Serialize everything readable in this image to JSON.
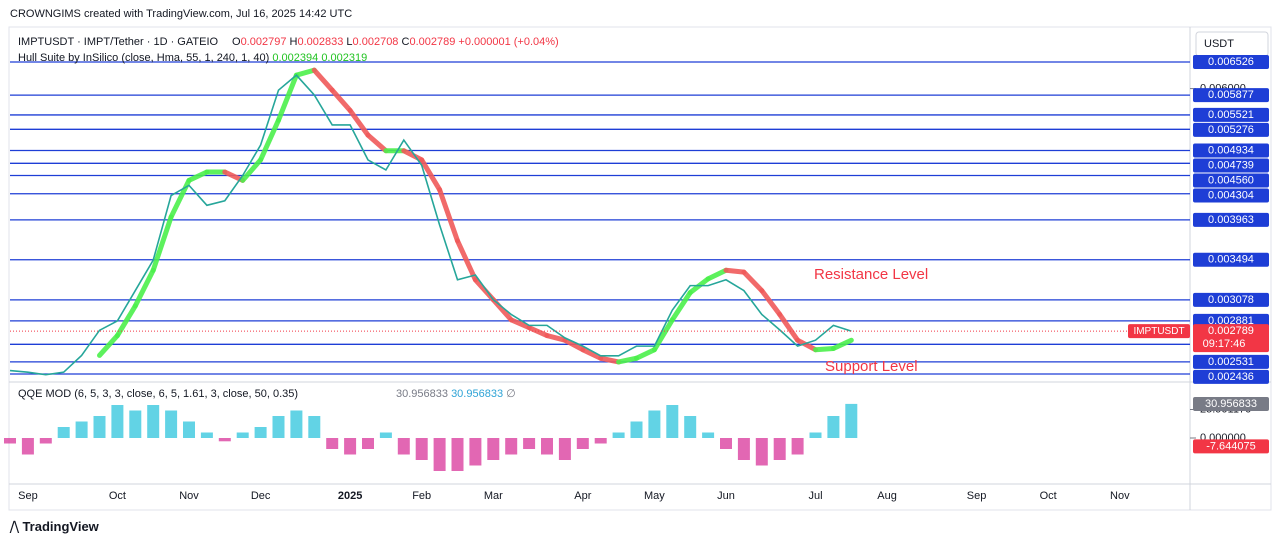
{
  "header": {
    "credit": "CROWNGIMS created with TradingView.com, Jul 16, 2025 14:42 UTC",
    "footer": "TradingView"
  },
  "legend": {
    "symbol": "IMPTUSDT · IMPT/Tether · 1D · GATEIO",
    "open": 0.002797,
    "high": 0.002833,
    "low": 0.002708,
    "close": 0.002789,
    "change": "+0.000001 (+0.04%)",
    "o": "O",
    "h": "H",
    "l": "L",
    "c": "C",
    "hull_title": "Hull Suite by InSilico (close, Hma, 55, 1, 240, 1, 40)",
    "hull_values": [
      0.002394,
      0.002319
    ],
    "qqe_title": "QQE MOD (6, 5, 3, 3, close, 6, 5, 1.61, 3, close, 50, 0.35)",
    "qqe_values": [
      30.956833,
      30.956833
    ],
    "qqe_empty": "∅"
  },
  "chart_data": [
    {
      "type": "line",
      "currency": "USDT",
      "log_scale": true,
      "color": "#26a69a",
      "categories": [
        null,
        "Sep",
        null,
        null,
        null,
        null,
        "Oct",
        null,
        null,
        null,
        "Nov",
        null,
        null,
        null,
        "Dec",
        null,
        null,
        null,
        null,
        "2025",
        null,
        null,
        null,
        "Feb",
        null,
        null,
        null,
        "Mar",
        null,
        null,
        null,
        null,
        "Apr",
        null,
        null,
        null,
        "May",
        null,
        null,
        null,
        "Jun",
        null,
        null,
        null,
        null,
        "Jul",
        null,
        null,
        null,
        "Aug",
        null,
        null,
        null,
        null,
        "Sep",
        null,
        null,
        null,
        "Oct",
        null,
        null,
        null,
        "Nov",
        null
      ],
      "values": [
        0.002462,
        0.00245,
        0.00243,
        0.00245,
        0.002583,
        0.002796,
        0.00288,
        0.00317,
        0.00349,
        0.00428,
        0.00442,
        0.00415,
        0.00421,
        0.00456,
        0.00502,
        0.00597,
        0.00626,
        0.00588,
        0.00535,
        0.00535,
        0.00479,
        0.00464,
        0.0051,
        0.00471,
        0.0039,
        0.00328,
        0.00333,
        0.00308,
        0.00294,
        0.00284,
        0.00284,
        0.00273,
        0.00266,
        0.00258,
        0.00258,
        0.00266,
        0.00266,
        0.00298,
        0.00322,
        0.00322,
        0.00328,
        0.00317,
        0.00294,
        0.0028,
        0.00266,
        0.00271,
        0.00284,
        0.002789,
        null,
        null,
        null,
        null,
        null,
        null,
        null,
        null,
        null,
        null,
        null,
        null,
        null,
        null,
        null,
        null
      ],
      "hull": {
        "color_up": "#4cf04c",
        "color_down": "#f05a5a",
        "values": [
          null,
          null,
          null,
          null,
          null,
          0.002583,
          0.00275,
          0.00302,
          0.00338,
          0.004,
          0.00449,
          0.00461,
          0.00461,
          0.00449,
          0.00479,
          0.00543,
          0.00626,
          0.00636,
          0.00597,
          0.0056,
          0.00518,
          0.00493,
          0.00493,
          0.00479,
          0.00436,
          0.00371,
          0.00328,
          0.00308,
          0.00289,
          0.00282,
          0.00275,
          0.00271,
          0.00263,
          0.00256,
          0.00253,
          0.00256,
          0.00263,
          0.00289,
          0.00315,
          0.00329,
          0.00338,
          0.00336,
          0.00317,
          0.00294,
          0.00271,
          0.00263,
          0.00264,
          0.00271,
          null,
          null,
          null,
          null,
          null,
          null,
          null,
          null,
          null,
          null,
          null,
          null,
          null,
          null,
          null,
          null
        ]
      },
      "ylim": [
        0.00239,
        0.00722
      ],
      "yticks": [
        {
          "value": 0.006,
          "label": "0.006000"
        }
      ],
      "levels": [
        0.006526,
        0.005877,
        0.005521,
        0.005276,
        0.004934,
        0.004739,
        {
          "value": 0.00456,
          "label": "0.004560"
        },
        0.004304,
        0.003963,
        0.003494,
        0.003078,
        0.002881,
        0.002675,
        0.002531,
        0.002436
      ],
      "last": {
        "name": "IMPTUSDT",
        "value": 0.002789,
        "countdown": "09:17:46"
      },
      "annotations": {
        "resistance": "Resistance Level",
        "support": "Support Level"
      }
    },
    {
      "type": "bar",
      "color_up": "#2ec4dc",
      "color_down": "#d8349a",
      "values": [
        -5,
        -15,
        -5,
        10,
        15,
        20,
        30,
        25,
        30,
        25,
        15,
        5,
        -3,
        5,
        10,
        20,
        25,
        20,
        -10,
        -15,
        -10,
        5,
        -15,
        -20,
        -30,
        -30,
        -25,
        -20,
        -15,
        -10,
        -15,
        -20,
        -10,
        -5,
        5,
        15,
        25,
        30,
        20,
        5,
        -10,
        -20,
        -25,
        -20,
        -15,
        5,
        20,
        31
      ],
      "ylim": [
        -40,
        50
      ],
      "yticks": [
        {
          "value": 25.90117,
          "label": "25.901170"
        },
        {
          "value": 0,
          "label": "0.000000"
        }
      ],
      "last_labels": [
        {
          "value": 30.956833,
          "label": "30.956833"
        },
        {
          "value": -7.644075,
          "label": "-7.644075"
        }
      ]
    }
  ]
}
